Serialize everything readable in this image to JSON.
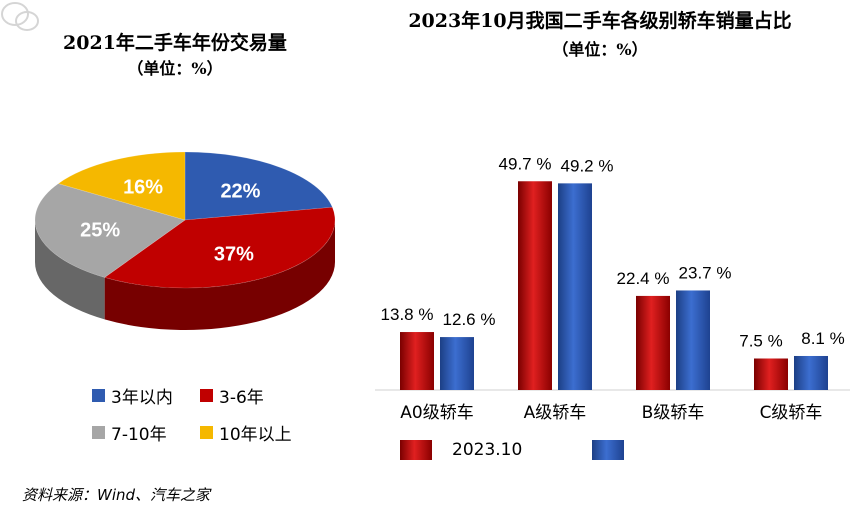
{
  "colors": {
    "blue": "#2f5bb0",
    "red": "#c00000",
    "gray": "#a6a6a6",
    "yellow": "#f5b800",
    "bar_red": "#c00000",
    "bar_blue": "#2e5cb8"
  },
  "chart_data": [
    {
      "type": "pie",
      "title": "2021年二手车年份交易量",
      "subtitle": "（单位：%）",
      "slices": [
        {
          "label": "3年以内",
          "value": 22,
          "display": "22%",
          "color": "#2f5bb0"
        },
        {
          "label": "3-6年",
          "value": 37,
          "display": "37%",
          "color": "#c00000"
        },
        {
          "label": "7-10年",
          "value": 25,
          "display": "25%",
          "color": "#a6a6a6"
        },
        {
          "label": "10年以上",
          "value": 16,
          "display": "16%",
          "color": "#f5b800"
        }
      ],
      "legend": [
        "3年以内",
        "3-6年",
        "7-10年",
        "10年以上"
      ]
    },
    {
      "type": "bar",
      "title": "2023年10月我国二手车各级别轿车销量占比",
      "subtitle": "（单位：%）",
      "categories": [
        "A0级轿车",
        "A级轿车",
        "B级轿车",
        "C级轿车"
      ],
      "series": [
        {
          "name": "2023.10",
          "values": [
            13.8,
            49.7,
            22.4,
            7.5
          ],
          "labels": [
            "13.8 %",
            "49.7 %",
            "22.4 %",
            "7.5 %"
          ],
          "color": "#c00000"
        },
        {
          "name": "",
          "values": [
            12.6,
            49.2,
            23.7,
            8.1
          ],
          "labels": [
            "12.6 %",
            "49.2 %",
            "23.7 %",
            "8.1 %"
          ],
          "color": "#2e5cb8"
        }
      ],
      "ylim": [
        0,
        55
      ]
    }
  ],
  "source": "资料来源：Wind、汽车之家"
}
